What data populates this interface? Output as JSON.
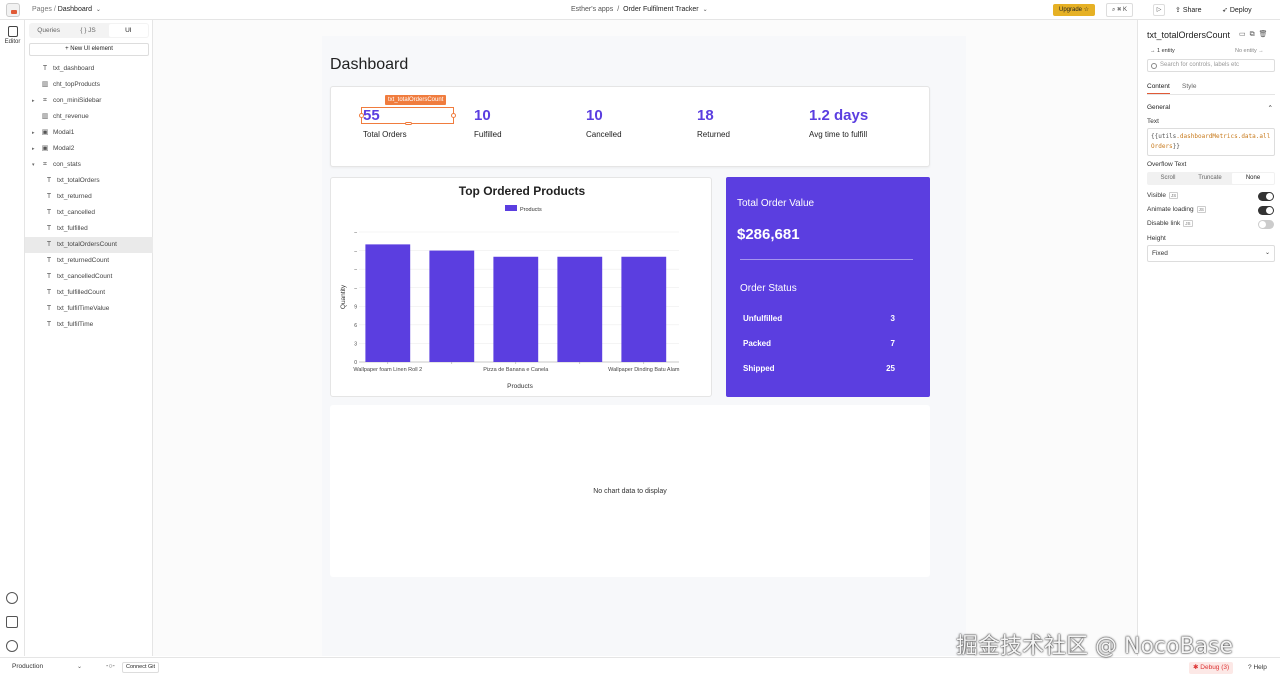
{
  "topbar": {
    "crumb_pages": "Pages",
    "crumb_sep": "/",
    "crumb_page": "Dashboard",
    "workspace": "Esther's apps",
    "app_sep": "/",
    "app_name": "Order Fulfilment Tracker",
    "upgrade": "Upgrade ☆",
    "search_shortcut": "⌘ K",
    "share": "Share",
    "deploy": "Deploy"
  },
  "rail": {
    "editor": "Editor"
  },
  "left_panel": {
    "tabs": [
      "Queries",
      "{ } JS",
      "UI"
    ],
    "active_tab": "UI",
    "new_ui": "+  New UI element",
    "tree": [
      {
        "label": "txt_dashboard",
        "icon": "T"
      },
      {
        "label": "cht_topProducts",
        "icon": "chart"
      },
      {
        "label": "con_miniSidebar",
        "icon": "container",
        "expandable": true
      },
      {
        "label": "cht_revenue",
        "icon": "chart"
      },
      {
        "label": "Modal1",
        "icon": "modal",
        "expandable": true
      },
      {
        "label": "Modal2",
        "icon": "modal",
        "expandable": true
      },
      {
        "label": "con_stats",
        "icon": "container",
        "expanded": true
      },
      {
        "label": "txt_totalOrders",
        "icon": "T",
        "child": true
      },
      {
        "label": "txt_returned",
        "icon": "T",
        "child": true
      },
      {
        "label": "txt_cancelled",
        "icon": "T",
        "child": true
      },
      {
        "label": "txt_fulfilled",
        "icon": "T",
        "child": true
      },
      {
        "label": "txt_totalOrdersCount",
        "icon": "T",
        "child": true,
        "selected": true
      },
      {
        "label": "txt_returnedCount",
        "icon": "T",
        "child": true
      },
      {
        "label": "txt_cancelledCount",
        "icon": "T",
        "child": true
      },
      {
        "label": "txt_fulfilledCount",
        "icon": "T",
        "child": true
      },
      {
        "label": "txt_fulfilTimeValue",
        "icon": "T",
        "child": true
      },
      {
        "label": "txt_fulfilTime",
        "icon": "T",
        "child": true
      }
    ]
  },
  "dashboard": {
    "title": "Dashboard",
    "selection_tag": "txt_totalOrdersCount",
    "stats": [
      {
        "value": "55",
        "label": "Total Orders"
      },
      {
        "value": "10",
        "label": "Fulfilled"
      },
      {
        "value": "10",
        "label": "Cancelled"
      },
      {
        "value": "18",
        "label": "Returned"
      },
      {
        "value": "1.2 days",
        "label": "Avg time to fulfill"
      }
    ],
    "order_value": {
      "title": "Total Order Value",
      "value": "$286,681",
      "status_title": "Order Status",
      "rows": [
        {
          "label": "Unfulfilled",
          "count": "3"
        },
        {
          "label": "Packed",
          "count": "7"
        },
        {
          "label": "Shipped",
          "count": "25"
        }
      ]
    },
    "empty_chart": "No chart data to display"
  },
  "chart_data": {
    "type": "bar",
    "title": "Top Ordered Products",
    "legend": [
      "Products"
    ],
    "xlabel": "Products",
    "ylabel": "Quantity",
    "categories": [
      "Wallpaper foam Linen Roll 2",
      "",
      "Pizza de Banana e Canela",
      "",
      "Wallpaper Dinding Batu Alam"
    ],
    "values": [
      19,
      18,
      17,
      17,
      17
    ],
    "y_ticks": [
      "0",
      "3",
      "6",
      "9",
      "",
      "",
      "",
      ""
    ],
    "ylim": [
      0,
      21
    ],
    "grid": true,
    "color": "#5b3ee0"
  },
  "right_panel": {
    "title": "txt_totalOrdersCount",
    "entity": "1 entity",
    "no_entity": "No entity",
    "search_placeholder": "Search for controls, labels etc",
    "tabs": [
      "Content",
      "Style"
    ],
    "section": "General",
    "text_label": "Text",
    "text_value_prefix": "{{",
    "text_value_obj": "utils",
    "text_value_rest": ".dashboardMetrics.data.allOrders",
    "text_value_suffix": "}}",
    "overflow_label": "Overflow Text",
    "overflow_options": [
      "Scroll",
      "Truncate",
      "None"
    ],
    "overflow_selected": "None",
    "visible_label": "Visible",
    "animate_label": "Animate loading",
    "disable_label": "Disable link",
    "js_badge": "JS",
    "height_label": "Height",
    "height_value": "Fixed"
  },
  "bottombar": {
    "env": "Production",
    "connect_git": "Connect Git",
    "debug": "Debug (3)",
    "help": "Help"
  },
  "watermark": "掘金技术社区 @ NocoBase"
}
